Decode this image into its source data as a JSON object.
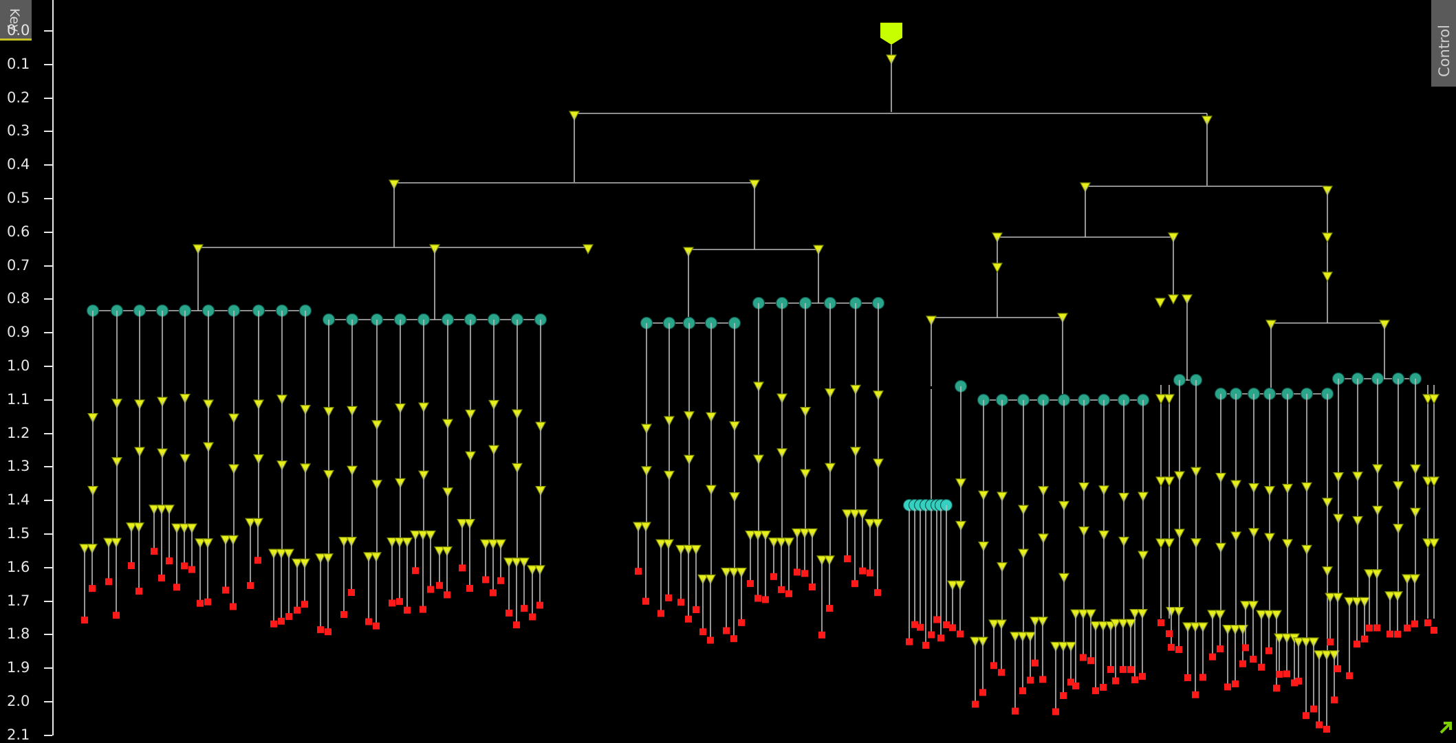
{
  "key_tab": {
    "label": "Key"
  },
  "control_tab": {
    "label": "Control"
  },
  "axis": {
    "ticks": [
      "0.0",
      "0.1",
      "0.2",
      "0.3",
      "0.4",
      "0.5",
      "0.6",
      "0.7",
      "0.8",
      "0.9",
      "1.0",
      "1.1",
      "1.2",
      "1.3",
      "1.4",
      "1.5",
      "1.6",
      "1.7",
      "1.8",
      "1.9",
      "2.0",
      "2.1"
    ]
  },
  "colors": {
    "background": "#000000",
    "edge": "#bdbdbd",
    "internal_node": "#e6ef1a",
    "internal_node_stroke": "#7d8a00",
    "collapsed_node": "#2aa58a",
    "collapsed_node_light": "#35d0c0",
    "leaf": "#ff1a1a",
    "root_marker": "#c8ff00",
    "axis_text": "#e6e6e6"
  },
  "icons": {
    "root": "root-marker-icon",
    "expand": "expand-arrow-icon"
  },
  "chart_data": {
    "type": "tree",
    "scale": "depth",
    "ylim": [
      0,
      2.1
    ],
    "root_depth": 0.1,
    "internal_depths": [
      0.26,
      0.46,
      0.65,
      0.8,
      0.9,
      1.1
    ],
    "collapsed_depths": [
      0.83,
      0.86,
      0.87,
      0.82,
      1.1,
      1.09,
      1.04,
      1.4
    ],
    "leaf_depth_range": [
      1.69,
      2.01
    ]
  }
}
